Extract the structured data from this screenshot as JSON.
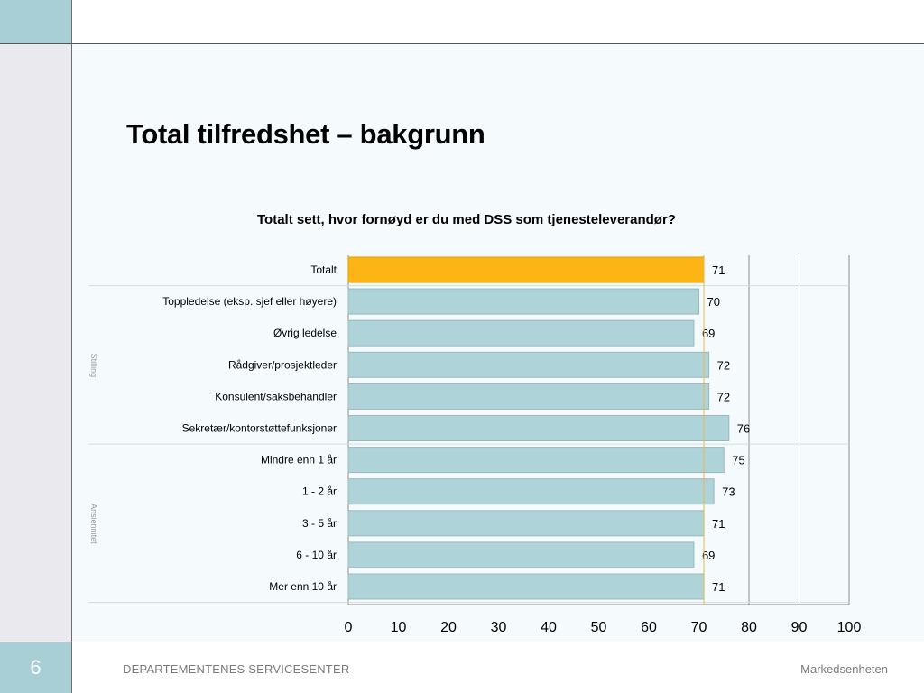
{
  "slide": {
    "title": "Total tilfredshet – bakgrunn",
    "page_number": "6",
    "footer_left": "DEPARTEMENTENES SERVICESENTER",
    "footer_right": "Markedsenheten"
  },
  "colors": {
    "highlight_bar": "#fdb515",
    "normal_bar": "#aed3d9",
    "bar_border": "#9cb8bd",
    "reference_line": "#e8b84a"
  },
  "chart_data": {
    "type": "bar",
    "orientation": "horizontal",
    "title": "Totalt sett, hvor fornøyd er du med DSS som tjenesteleverandør?",
    "categories": [
      "Totalt",
      "Toppledelse (eksp. sjef eller høyere)",
      "Øvrig ledelse",
      "Rådgiver/prosjektleder",
      "Konsulent/saksbehandler",
      "Sekretær/kontorstøttefunksjoner",
      "Mindre enn 1 år",
      "1 - 2 år",
      "3 - 5 år",
      "6 - 10 år",
      "Mer enn 10 år"
    ],
    "values": [
      71,
      70,
      69,
      72,
      72,
      76,
      75,
      73,
      71,
      69,
      71
    ],
    "groups": [
      {
        "label": "Stilling",
        "from": 1,
        "to": 5
      },
      {
        "label": "Ansiennitet",
        "from": 6,
        "to": 10
      }
    ],
    "highlight_index": 0,
    "reference_value": 71,
    "xlim": [
      0,
      100
    ],
    "xticks": [
      0,
      10,
      20,
      30,
      40,
      50,
      60,
      70,
      80,
      90,
      100
    ],
    "gridlines": [
      80,
      90,
      100
    ]
  }
}
